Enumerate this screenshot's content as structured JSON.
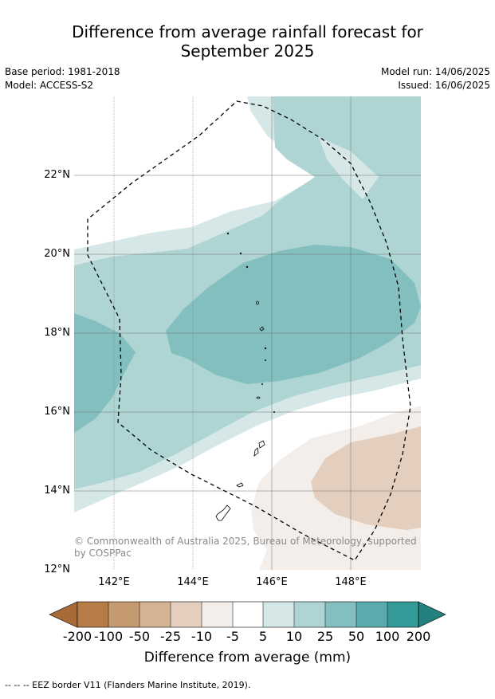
{
  "header": {
    "title_line1": "Difference from average rainfall forecast for",
    "title_line2": "September 2025",
    "base_period": "Base period: 1981-2018",
    "model": "Model: ACCESS-S2",
    "model_run": "Model run: 14/06/2025",
    "issued": "Issued: 16/06/2025"
  },
  "map": {
    "lat_labels": [
      "22°N",
      "20°N",
      "18°N",
      "16°N",
      "14°N",
      "12°N"
    ],
    "lon_labels": [
      "142°E",
      "144°E",
      "146°E",
      "148°E"
    ],
    "copyright": "© Commonwealth of Australia 2025, Bureau of Meteorology, supported by COSPPac",
    "colors": {
      "ocean_blank": "#ffffff",
      "wet_5_10": "#d5e8e7",
      "wet_10_25": "#aed5d4",
      "wet_25_50": "#84bfbf",
      "dry_minus10_minus5": "#f3eeea",
      "dry_minus25_minus10": "#e4cfbe",
      "eez_line": "#000000"
    }
  },
  "colorbar": {
    "title": "Difference from average (mm)",
    "labels": [
      "-200",
      "-100",
      "-50",
      "-25",
      "-10",
      "-5",
      "5",
      "10",
      "25",
      "50",
      "100",
      "200"
    ],
    "colors": [
      "#a86b38",
      "#b57c46",
      "#c59a70",
      "#d4b294",
      "#e4cfbe",
      "#f3eeea",
      "#ffffff",
      "#d5e8e7",
      "#aed5d4",
      "#84bfbf",
      "#5aabab",
      "#349b98",
      "#23817e"
    ]
  },
  "footnote": "--  --  -- EEZ border V11 (Flanders Marine Institute, 2019)."
}
